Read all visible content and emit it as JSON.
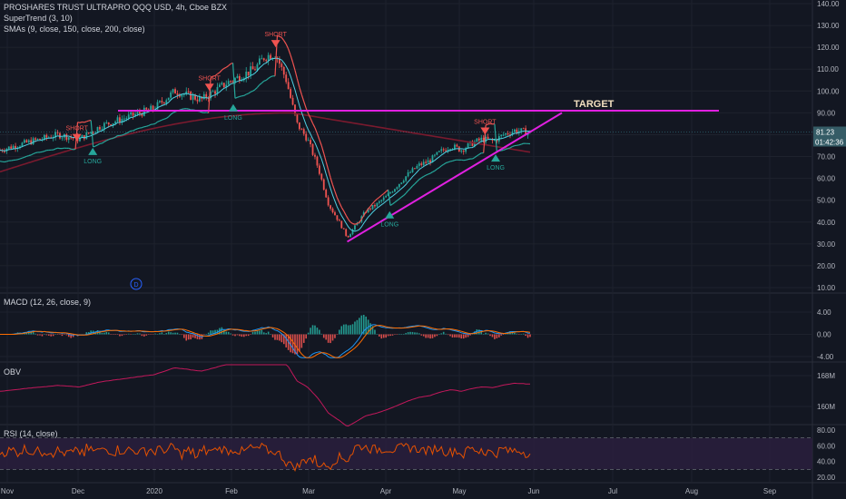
{
  "header": {
    "symbol_line": "PROSHARES TRUST ULTRAPRO QQQ USD, 4h, Cboe BZX",
    "indicator_1": "SuperTrend (3, 10)",
    "indicator_2": "SMAs (9, close, 150, close, 200, close)"
  },
  "colors": {
    "background": "#131722",
    "grid": "#1e222d",
    "up_candle": "#26a69a",
    "down_candle": "#ef5350",
    "supertrend_down": "#ef5350",
    "supertrend_up": "#26a69a",
    "sma_fast": "#4dd0e1",
    "sma_long": "#7a1a2e",
    "trendline": "#e020e0",
    "obv_line": "#c2185b",
    "rsi_line": "#e65100",
    "rsi_band": "#2a1f3d",
    "macd_line": "#2196f3",
    "signal_line": "#ff6d00",
    "price_tag": "#355c66"
  },
  "chart_data": [
    {
      "panel": "price",
      "type": "candlestick",
      "y_axis_ticks": [
        "140.00",
        "130.00",
        "120.00",
        "110.00",
        "100.00",
        "90.00",
        "80.00",
        "70.00",
        "60.00",
        "50.00",
        "40.00",
        "30.00",
        "20.00",
        "10.00"
      ],
      "ylim": [
        10,
        140
      ],
      "x_axis_labels": [
        "Nov",
        "Dec",
        "2020",
        "Feb",
        "Mar",
        "Apr",
        "May",
        "Jun",
        "Jul",
        "Aug",
        "Sep"
      ],
      "close_path": [
        [
          0,
          73
        ],
        [
          0.06,
          77
        ],
        [
          0.11,
          80
        ],
        [
          0.15,
          78
        ],
        [
          0.19,
          84
        ],
        [
          0.24,
          88
        ],
        [
          0.29,
          92
        ],
        [
          0.33,
          100
        ],
        [
          0.38,
          96
        ],
        [
          0.43,
          104
        ],
        [
          0.48,
          110
        ],
        [
          0.5,
          116
        ],
        [
          0.52,
          117
        ],
        [
          0.54,
          105
        ],
        [
          0.56,
          85
        ],
        [
          0.58,
          78
        ],
        [
          0.6,
          65
        ],
        [
          0.62,
          48
        ],
        [
          0.64,
          40
        ],
        [
          0.655,
          33
        ],
        [
          0.67,
          38
        ],
        [
          0.69,
          45
        ],
        [
          0.71,
          48
        ],
        [
          0.73,
          52
        ],
        [
          0.75,
          57
        ],
        [
          0.77,
          62
        ],
        [
          0.79,
          66
        ],
        [
          0.81,
          68
        ],
        [
          0.83,
          72
        ],
        [
          0.85,
          75
        ],
        [
          0.87,
          73
        ],
        [
          0.89,
          76
        ],
        [
          0.91,
          78
        ],
        [
          0.93,
          77
        ],
        [
          0.95,
          80
        ],
        [
          0.97,
          82
        ],
        [
          1,
          81
        ]
      ],
      "last_price": "81.23",
      "countdown": "01:42:36",
      "target_level": 91,
      "target_label": "TARGET",
      "signals": [
        {
          "label": "SHORT",
          "kind": "short",
          "x": 0.145,
          "y": 77
        },
        {
          "label": "LONG",
          "kind": "long",
          "x": 0.175,
          "y": 74
        },
        {
          "label": "SHORT",
          "kind": "short",
          "x": 0.395,
          "y": 100
        },
        {
          "label": "LONG",
          "kind": "long",
          "x": 0.44,
          "y": 94
        },
        {
          "label": "SHORT",
          "kind": "short",
          "x": 0.52,
          "y": 120
        },
        {
          "label": "LONG",
          "kind": "long",
          "x": 0.735,
          "y": 45
        },
        {
          "label": "SHORT",
          "kind": "short",
          "x": 0.915,
          "y": 80
        },
        {
          "label": "LONG",
          "kind": "long",
          "x": 0.935,
          "y": 71
        }
      ],
      "trendline_support": [
        [
          0.655,
          31
        ],
        [
          1.06,
          90
        ]
      ],
      "annotation_marker": "D"
    },
    {
      "panel": "macd",
      "title": "MACD (12, 26, close, 9)",
      "y_axis_ticks": [
        "4.00",
        "0.00",
        "-4.00"
      ],
      "ylim": [
        -4,
        6
      ]
    },
    {
      "panel": "obv",
      "title": "OBV",
      "y_axis_ticks": [
        "168M",
        "160M"
      ]
    },
    {
      "panel": "rsi",
      "title": "RSI (14, close)",
      "y_axis_ticks": [
        "80.00",
        "60.00",
        "40.00",
        "20.00"
      ],
      "ylim": [
        14,
        84
      ],
      "upper_band": 70,
      "lower_band": 30
    }
  ]
}
